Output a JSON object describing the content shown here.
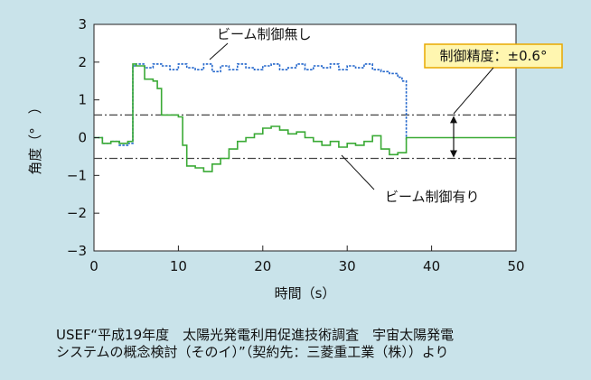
{
  "chart_data": {
    "type": "line",
    "xlabel": "時間（s）",
    "ylabel": "角度（°　）",
    "xlim": [
      0,
      50
    ],
    "ylim": [
      -3,
      3
    ],
    "xticks": [
      "0",
      "10",
      "20",
      "30",
      "40",
      "50"
    ],
    "yticks": [
      "3",
      "2",
      "1",
      "0",
      "−1",
      "−2",
      "−3"
    ],
    "grid": false,
    "series": [
      {
        "name": "ビーム制御無し",
        "style": "dashed",
        "color": "#2266cc",
        "x": [
          0,
          1,
          2,
          3,
          4,
          4.6,
          5,
          6,
          7,
          8,
          9,
          10,
          11,
          12,
          13,
          14,
          15,
          16,
          17,
          18,
          19,
          20,
          21,
          22,
          23,
          24,
          25,
          26,
          27,
          28,
          29,
          30,
          31,
          32,
          33,
          34,
          35,
          36,
          36.5,
          37
        ],
        "y": [
          0.0,
          -0.15,
          -0.1,
          -0.2,
          -0.15,
          1.9,
          1.95,
          1.85,
          1.95,
          1.9,
          1.8,
          1.95,
          1.85,
          1.8,
          1.95,
          1.75,
          1.9,
          1.8,
          1.95,
          1.85,
          1.8,
          1.9,
          1.95,
          1.8,
          1.85,
          1.95,
          1.8,
          1.9,
          1.85,
          1.95,
          1.8,
          1.9,
          1.85,
          1.95,
          1.8,
          1.75,
          1.7,
          1.6,
          1.5,
          -0.05
        ]
      },
      {
        "name": "ビーム制御有り",
        "style": "solid",
        "color": "#3aaa35",
        "x": [
          0,
          1,
          2,
          3,
          4,
          4.6,
          5,
          6,
          7,
          7.5,
          8,
          9,
          10,
          10.5,
          11,
          12,
          13,
          14,
          15,
          16,
          17,
          18,
          19,
          20,
          21,
          22,
          23,
          24,
          25,
          26,
          27,
          28,
          29,
          30,
          31,
          32,
          33,
          34,
          35,
          36,
          37,
          38,
          40,
          42,
          44,
          46,
          48,
          50
        ],
        "y": [
          0.0,
          -0.15,
          -0.1,
          -0.15,
          -0.1,
          1.95,
          1.9,
          1.55,
          1.5,
          1.3,
          0.6,
          0.6,
          0.55,
          -0.2,
          -0.75,
          -0.8,
          -0.9,
          -0.7,
          -0.55,
          -0.3,
          -0.1,
          0.0,
          0.1,
          0.25,
          0.3,
          0.2,
          0.1,
          0.15,
          0.0,
          -0.1,
          -0.2,
          -0.1,
          -0.25,
          -0.15,
          -0.2,
          -0.1,
          0.05,
          -0.3,
          -0.45,
          -0.4,
          0.0,
          0.0,
          0.0,
          0.0,
          0.0,
          0.0,
          0.0,
          0.0
        ]
      }
    ],
    "reference_lines": [
      0.6,
      -0.55
    ],
    "annotations": {
      "no_control": "ビーム制御無し",
      "with_control": "ビーム制御有り",
      "precision": "制御精度：±0.6°"
    }
  },
  "caption": {
    "line1": "USEF“平成19年度　太陽光発電利用促進技術調査　宇宙太陽発電",
    "line2": "システムの概念検討（そのイ）”（契約先：三菱重工業（株））より"
  },
  "colors": {
    "background": "#c9e3ea",
    "plot_area": "#ffffff",
    "callout_box": "#fff6b0",
    "callout_border": "#e8a800"
  }
}
